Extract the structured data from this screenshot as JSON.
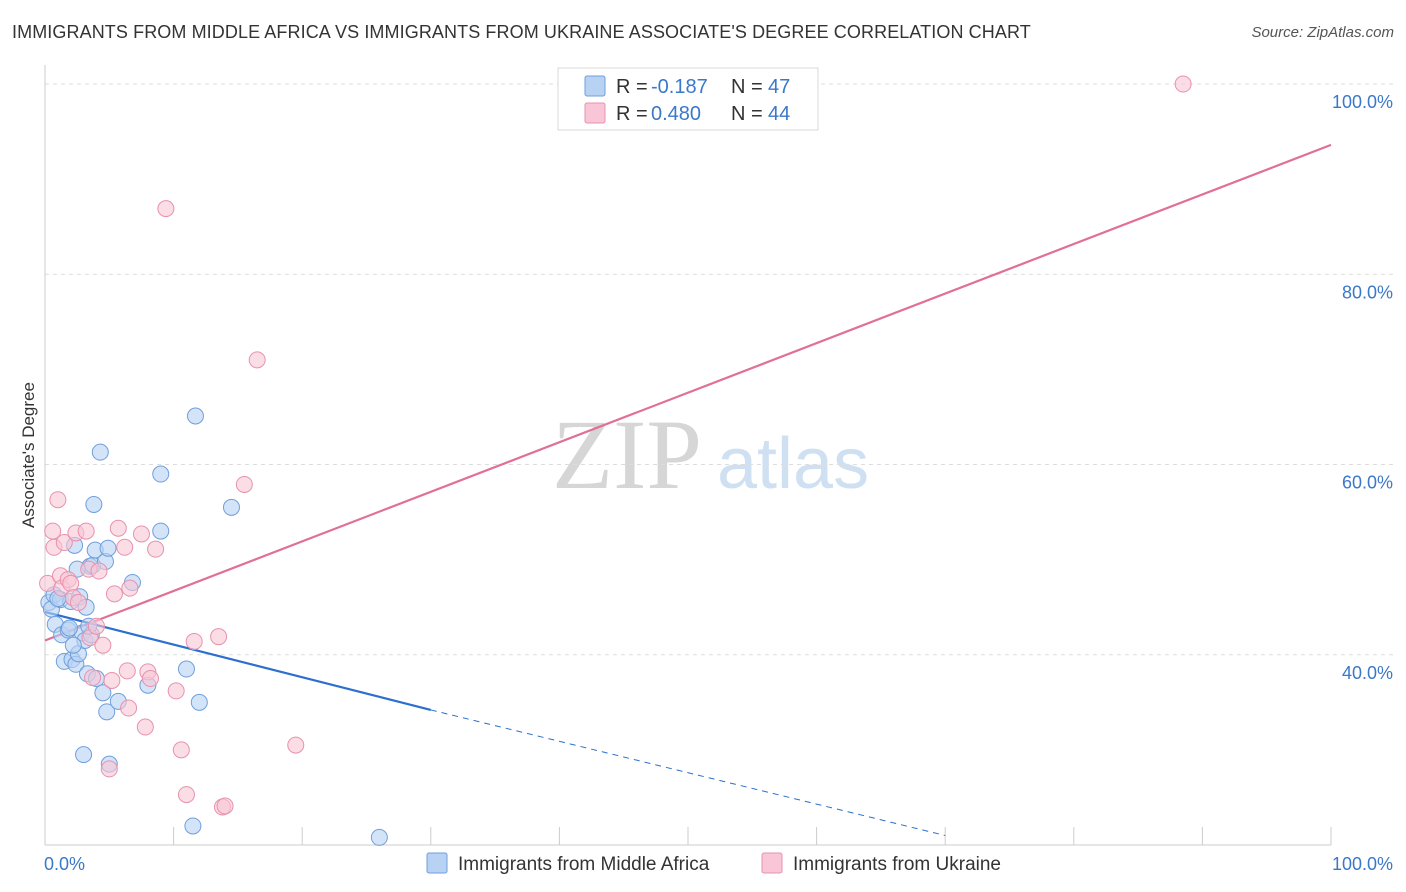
{
  "header": {
    "title": "IMMIGRANTS FROM MIDDLE AFRICA VS IMMIGRANTS FROM UKRAINE ASSOCIATE'S DEGREE CORRELATION CHART",
    "source": "Source: ZipAtlas.com"
  },
  "watermark": {
    "part1": "ZIP",
    "part2": "atlas"
  },
  "colors": {
    "blue_fill": "#b8d2f3",
    "blue_stroke": "#6f9fdc",
    "blue_line": "#2c6fcf",
    "pink_fill": "#f8c6d6",
    "pink_stroke": "#e891ae",
    "pink_line": "#e07095",
    "grid": "#dddddd",
    "tick_label": "#3a78c9"
  },
  "legend": {
    "rows": [
      {
        "r_label": "R = ",
        "r_value": "-0.187",
        "n_label": "N = ",
        "n_value": "47",
        "series": "blue"
      },
      {
        "r_label": "R = ",
        "r_value": "0.480",
        "n_label": "N = ",
        "n_value": "44",
        "series": "pink"
      }
    ]
  },
  "chart_data": {
    "type": "scatter",
    "title": "IMMIGRANTS FROM MIDDLE AFRICA VS IMMIGRANTS FROM UKRAINE ASSOCIATE'S DEGREE CORRELATION CHART",
    "xlabel": "",
    "ylabel": "Associate's Degree",
    "xlim": [
      0,
      100
    ],
    "ylim": [
      20,
      102
    ],
    "x_tick_labels": [
      {
        "value": 0,
        "label": "0.0%"
      },
      {
        "value": 100,
        "label": "100.0%"
      }
    ],
    "y_tick_labels": [
      {
        "value": 40,
        "label": "40.0%"
      },
      {
        "value": 60,
        "label": "60.0%"
      },
      {
        "value": 80,
        "label": "80.0%"
      },
      {
        "value": 100,
        "label": "100.0%"
      }
    ],
    "y_gridlines": [
      40,
      60,
      80,
      100
    ],
    "x_minor_ticks": [
      0,
      10,
      20,
      30,
      40,
      50,
      60,
      70,
      80,
      90,
      100
    ],
    "legend_position": "top-center",
    "series": [
      {
        "name": "Immigrants from Middle Africa",
        "color": "blue",
        "r": -0.187,
        "n": 47,
        "trend": {
          "x0": 0,
          "y0": 44.5,
          "x1": 30,
          "y1": 34.2,
          "dash_to_x": 70,
          "dash_to_y": 21.0
        },
        "points": [
          [
            0.3,
            45.5
          ],
          [
            0.5,
            44.8
          ],
          [
            0.7,
            46.3
          ],
          [
            0.8,
            43.2
          ],
          [
            1.2,
            45.8
          ],
          [
            1.3,
            42.1
          ],
          [
            1.5,
            39.3
          ],
          [
            1.8,
            42.6
          ],
          [
            2.0,
            45.6
          ],
          [
            2.1,
            39.5
          ],
          [
            2.4,
            39.0
          ],
          [
            2.6,
            40.1
          ],
          [
            2.3,
            51.5
          ],
          [
            2.9,
            42.3
          ],
          [
            2.7,
            46.1
          ],
          [
            3.1,
            41.5
          ],
          [
            3.3,
            38.0
          ],
          [
            3.5,
            49.3
          ],
          [
            3.0,
            29.5
          ],
          [
            3.7,
            49.4
          ],
          [
            3.6,
            42.1
          ],
          [
            3.4,
            43.0
          ],
          [
            3.8,
            55.8
          ],
          [
            4.0,
            37.5
          ],
          [
            3.9,
            51.0
          ],
          [
            4.3,
            61.3
          ],
          [
            4.5,
            36.0
          ],
          [
            4.7,
            49.8
          ],
          [
            4.9,
            51.2
          ],
          [
            4.8,
            34.0
          ],
          [
            5.0,
            28.5
          ],
          [
            5.7,
            35.1
          ],
          [
            6.8,
            47.6
          ],
          [
            8.0,
            36.8
          ],
          [
            9.0,
            59.0
          ],
          [
            9.0,
            53.0
          ],
          [
            11.0,
            38.5
          ],
          [
            11.7,
            65.1
          ],
          [
            12.0,
            35.0
          ],
          [
            11.5,
            22.0
          ],
          [
            14.5,
            55.5
          ],
          [
            26.0,
            20.8
          ],
          [
            1.9,
            42.8
          ],
          [
            2.2,
            41.0
          ],
          [
            1.0,
            45.9
          ],
          [
            2.5,
            49.0
          ],
          [
            3.2,
            45.0
          ]
        ]
      },
      {
        "name": "Immigrants from Ukraine",
        "color": "pink",
        "r": 0.48,
        "n": 44,
        "trend": {
          "x0": 0,
          "y0": 41.5,
          "x1": 100,
          "y1": 93.6
        },
        "points": [
          [
            0.2,
            47.5
          ],
          [
            0.6,
            53.0
          ],
          [
            0.7,
            51.3
          ],
          [
            1.0,
            56.3
          ],
          [
            1.2,
            48.3
          ],
          [
            1.3,
            47.0
          ],
          [
            1.5,
            51.8
          ],
          [
            1.8,
            47.9
          ],
          [
            2.0,
            47.5
          ],
          [
            2.2,
            46.0
          ],
          [
            2.4,
            52.8
          ],
          [
            2.6,
            45.5
          ],
          [
            3.2,
            53.0
          ],
          [
            3.4,
            49.0
          ],
          [
            3.5,
            41.8
          ],
          [
            3.7,
            37.6
          ],
          [
            4.0,
            43.0
          ],
          [
            4.2,
            48.8
          ],
          [
            4.5,
            41.0
          ],
          [
            5.0,
            28.0
          ],
          [
            5.2,
            37.3
          ],
          [
            5.4,
            46.4
          ],
          [
            5.7,
            53.3
          ],
          [
            6.2,
            51.3
          ],
          [
            6.4,
            38.3
          ],
          [
            6.5,
            34.4
          ],
          [
            6.6,
            47.0
          ],
          [
            7.5,
            52.7
          ],
          [
            7.8,
            32.4
          ],
          [
            8.0,
            38.2
          ],
          [
            8.2,
            37.5
          ],
          [
            8.6,
            51.1
          ],
          [
            9.4,
            86.9
          ],
          [
            10.2,
            36.2
          ],
          [
            10.6,
            30.0
          ],
          [
            11.0,
            25.3
          ],
          [
            11.6,
            41.4
          ],
          [
            13.5,
            41.9
          ],
          [
            13.8,
            24.0
          ],
          [
            14.0,
            24.1
          ],
          [
            15.5,
            57.9
          ],
          [
            16.5,
            71.0
          ],
          [
            19.5,
            30.5
          ],
          [
            88.5,
            100.0
          ]
        ]
      }
    ]
  },
  "bottom_legend": {
    "items": [
      {
        "label": "Immigrants from Middle Africa",
        "series": "blue"
      },
      {
        "label": "Immigrants from Ukraine",
        "series": "pink"
      }
    ]
  }
}
